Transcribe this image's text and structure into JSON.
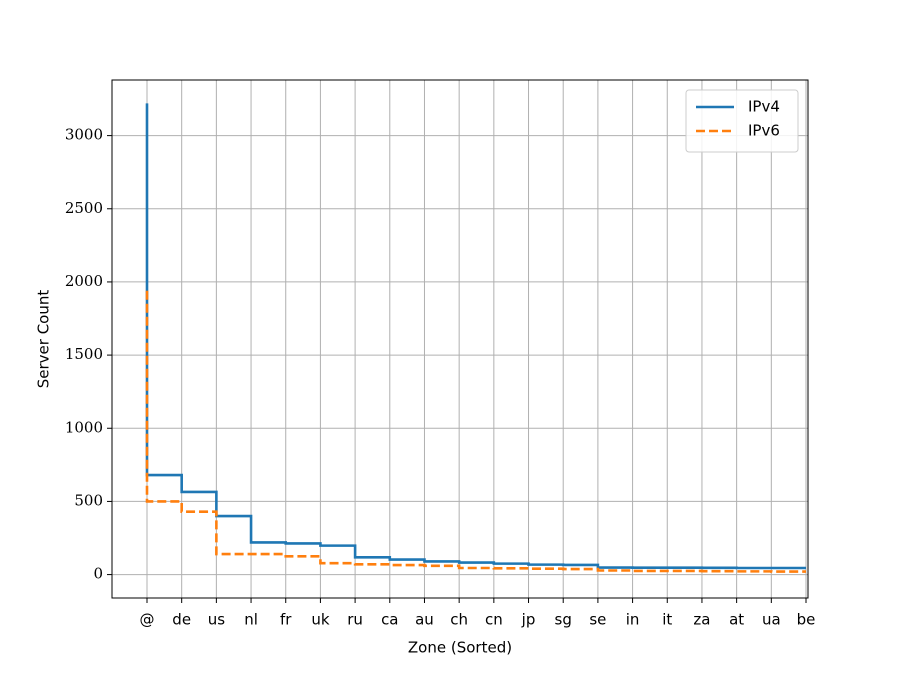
{
  "chart_data": {
    "type": "line",
    "drawstyle": "steps-pre",
    "xlabel": "Zone (Sorted)",
    "ylabel": "Server Count",
    "x": [
      "@",
      "de",
      "us",
      "nl",
      "fr",
      "uk",
      "ru",
      "ca",
      "au",
      "ch",
      "cn",
      "jp",
      "sg",
      "se",
      "in",
      "it",
      "za",
      "at",
      "ua",
      "be"
    ],
    "series": [
      {
        "name": "IPv4",
        "color": "#1f77b4",
        "linestyle": "solid",
        "values": [
          3220,
          680,
          565,
          400,
          220,
          213,
          198,
          118,
          103,
          90,
          82,
          75,
          68,
          66,
          48,
          47,
          47,
          46,
          45,
          45
        ]
      },
      {
        "name": "IPv6",
        "color": "#ff7f0e",
        "linestyle": "dashed",
        "values": [
          1940,
          500,
          430,
          140,
          140,
          125,
          78,
          70,
          65,
          60,
          45,
          43,
          40,
          38,
          28,
          25,
          25,
          23,
          22,
          21
        ]
      }
    ],
    "ylim": [
      -160,
      3380
    ],
    "yticks": [
      0,
      500,
      1000,
      1500,
      2000,
      2500,
      3000
    ],
    "grid": true,
    "legend": "upper right"
  }
}
